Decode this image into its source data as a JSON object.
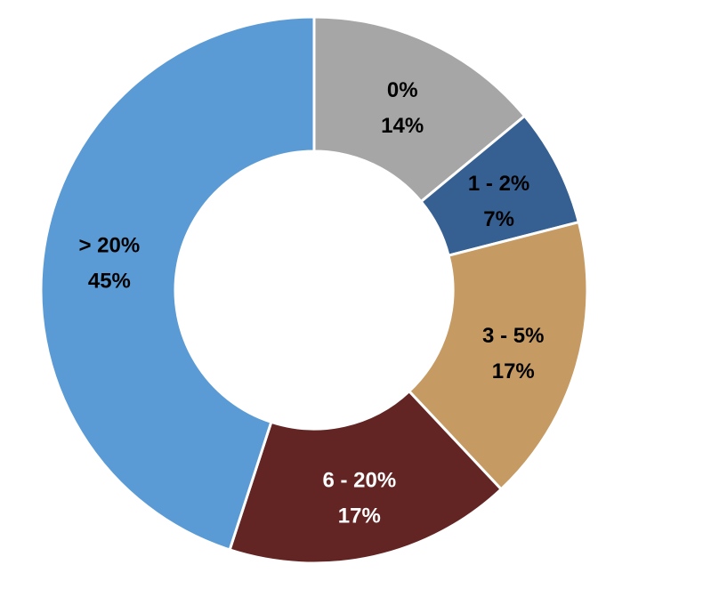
{
  "chart_data": {
    "type": "pie",
    "donut": true,
    "start_angle_deg": 0,
    "direction": "clockwise",
    "slices": [
      {
        "label": "0%",
        "value": 14,
        "value_label": "14%",
        "color": "#a6a6a6",
        "text_color": "#000000"
      },
      {
        "label": "1 - 2%",
        "value": 7,
        "value_label": "7%",
        "color": "#376092",
        "text_color": "#000000"
      },
      {
        "label": "3 - 5%",
        "value": 17,
        "value_label": "17%",
        "color": "#c69a63",
        "text_color": "#000000"
      },
      {
        "label": "6 - 20%",
        "value": 17,
        "value_label": "17%",
        "color": "#632523",
        "text_color": "#ffffff"
      },
      {
        "label": "> 20%",
        "value": 45,
        "value_label": "45%",
        "color": "#5b9bd5",
        "text_color": "#000000"
      }
    ]
  }
}
